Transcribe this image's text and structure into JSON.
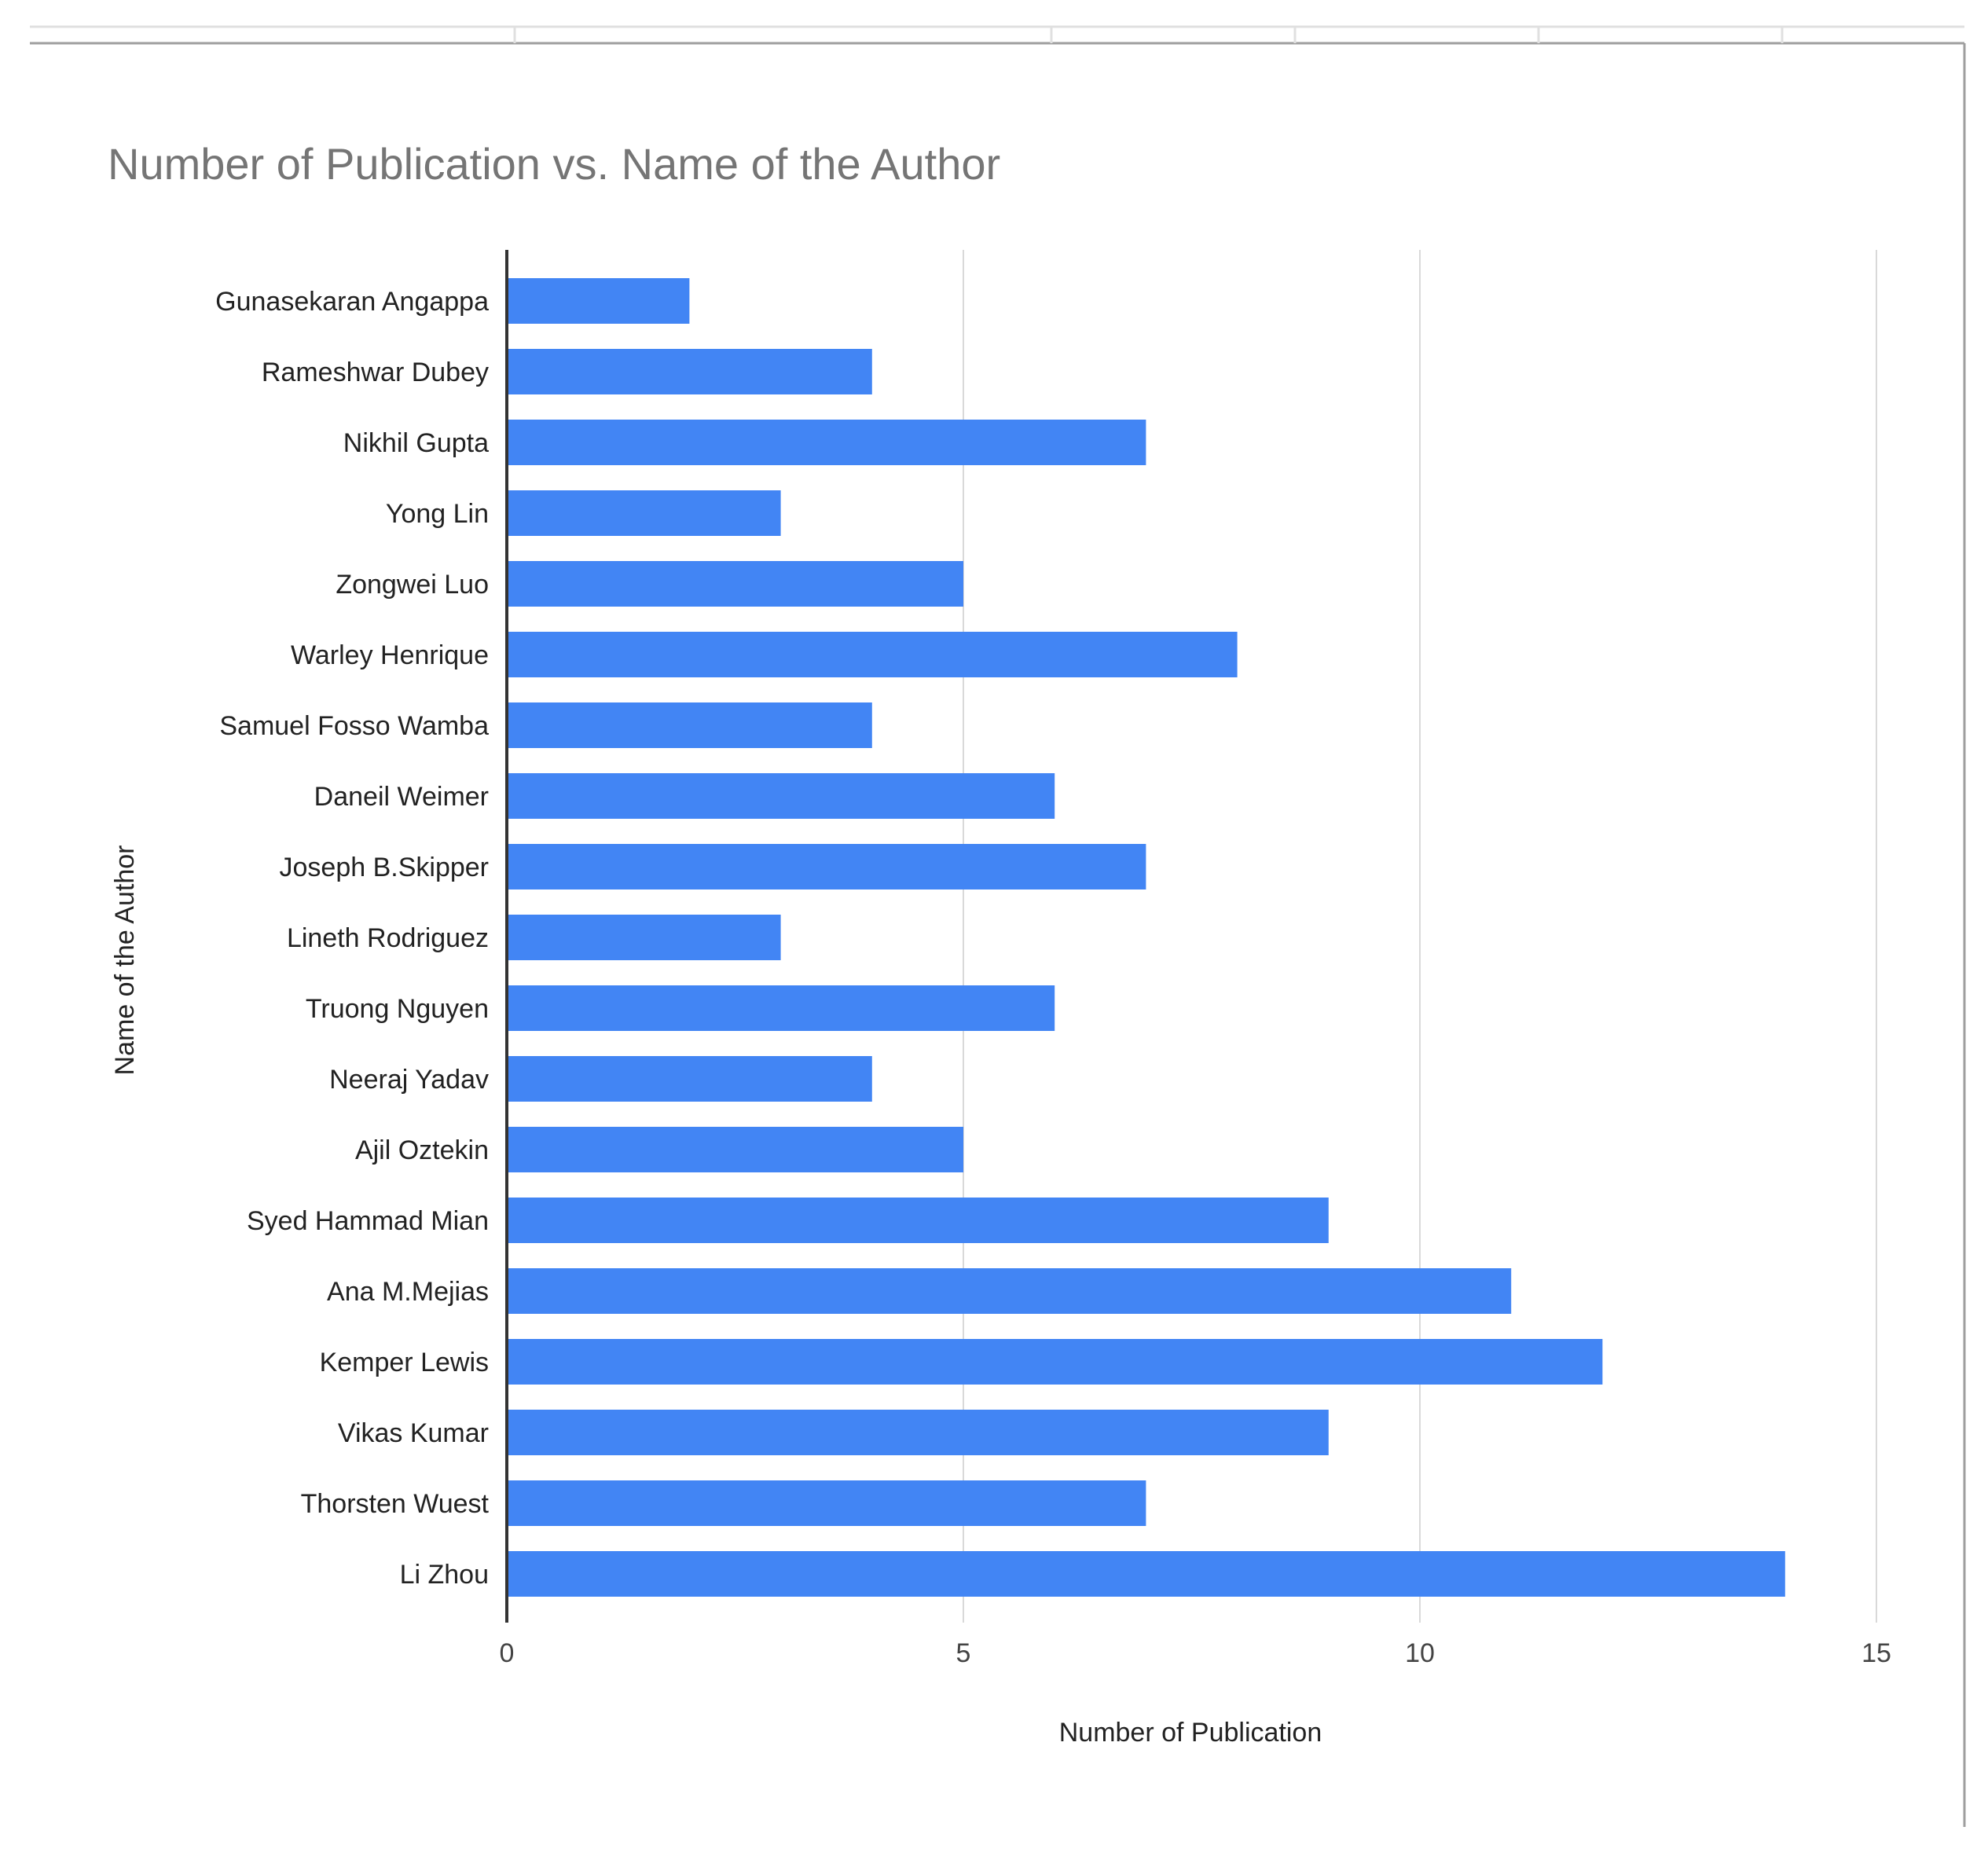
{
  "chart_data": {
    "type": "bar",
    "orientation": "horizontal",
    "title": "Number of Publication vs. Name of the Author",
    "xlabel": "Number of Publication",
    "ylabel": "Name of the Author",
    "xlim": [
      0,
      15
    ],
    "xticks": [
      0,
      5,
      10,
      15
    ],
    "grid": true,
    "bar_color": "#4285f4",
    "categories": [
      "Gunasekaran Angappa",
      "Rameshwar Dubey",
      "Nikhil Gupta",
      "Yong Lin",
      "Zongwei Luo",
      "Warley Henrique",
      "Samuel Fosso Wamba",
      "Daneil Weimer",
      "Joseph B.Skipper",
      "Lineth Rodriguez",
      "Truong Nguyen",
      "Neeraj Yadav",
      "Ajil Oztekin",
      "Syed Hammad Mian",
      "Ana M.Mejias",
      "Kemper Lewis",
      "Vikas Kumar",
      "Thorsten Wuest",
      "Li Zhou"
    ],
    "values": [
      2,
      4,
      7,
      3,
      5,
      8,
      4,
      6,
      7,
      3,
      6,
      4,
      5,
      9,
      11,
      12,
      9,
      7,
      14
    ]
  }
}
